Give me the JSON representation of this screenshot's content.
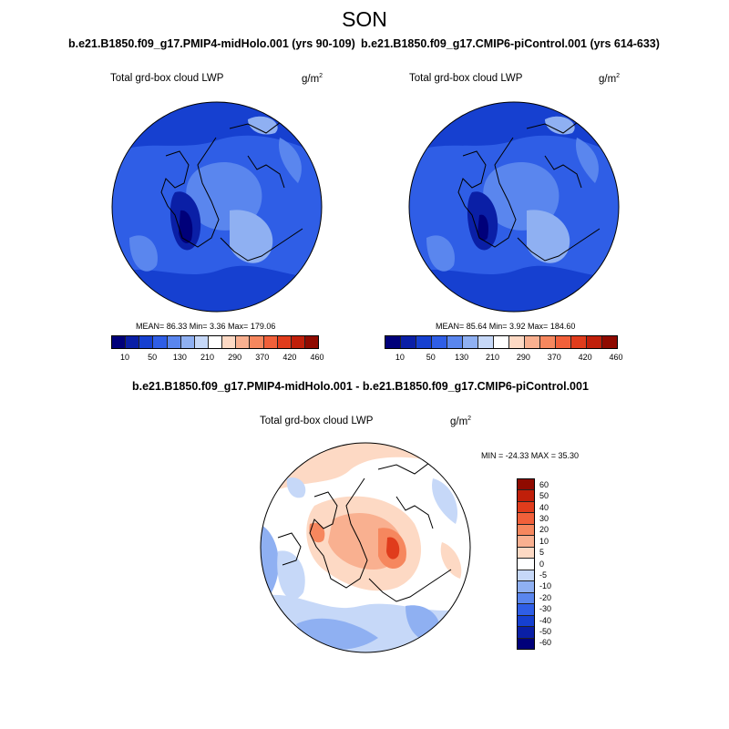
{
  "figure": {
    "season": "SON",
    "case_a_title": "b.e21.B1850.f09_g17.PMIP4-midHolo.001 (yrs 90-109)",
    "case_b_title": "b.e21.B1850.f09_g17.CMIP6-piControl.001 (yrs 614-633)",
    "diff_title": "b.e21.B1850.f09_g17.PMIP4-midHolo.001 - b.e21.B1850.f09_g17.CMIP6-piControl.001"
  },
  "panels": {
    "left": {
      "variable": "Total grd-box cloud LWP",
      "units_base": "g/m",
      "units_exp": "2",
      "mean_label": "MEAN= 86.33  Min=  3.36  Max= 179.06",
      "mean": 86.33,
      "min": 3.36,
      "max": 179.06
    },
    "right": {
      "variable": "Total grd-box cloud LWP",
      "units_base": "g/m",
      "units_exp": "2",
      "mean_label": "MEAN= 85.64  Min=  3.92  Max= 184.60",
      "mean": 85.64,
      "min": 3.92,
      "max": 184.6
    },
    "diff": {
      "variable": "Total grd-box cloud LWP",
      "units_base": "g/m",
      "units_exp": "2",
      "minmax_label": "MIN = -24.33 MAX =  35.30",
      "min": -24.33,
      "max": 35.3
    }
  },
  "colorbars": {
    "abs_labels": [
      "10",
      "50",
      "130",
      "210",
      "290",
      "370",
      "420",
      "460"
    ],
    "abs_colors": [
      "#00007a",
      "#0a1fa6",
      "#1640d0",
      "#2f5ee6",
      "#5a86ee",
      "#8fb0f2",
      "#c6d8f8",
      "#ffffff",
      "#fdd9c4",
      "#f9b090",
      "#f6875e",
      "#f1603a",
      "#e03c1c",
      "#c01f0a",
      "#8f0a00"
    ],
    "diff_labels": [
      "60",
      "50",
      "40",
      "30",
      "20",
      "10",
      "5",
      "0",
      "-5",
      "-10",
      "-20",
      "-30",
      "-40",
      "-50",
      "-60"
    ],
    "diff_colors": [
      "#8f0a00",
      "#c01f0a",
      "#e03c1c",
      "#f1603a",
      "#f6875e",
      "#f9b090",
      "#fdd9c4",
      "#ffffff",
      "#c6d8f8",
      "#8fb0f2",
      "#5a86ee",
      "#2f5ee6",
      "#1640d0",
      "#0a1fa6",
      "#00007a"
    ]
  }
}
